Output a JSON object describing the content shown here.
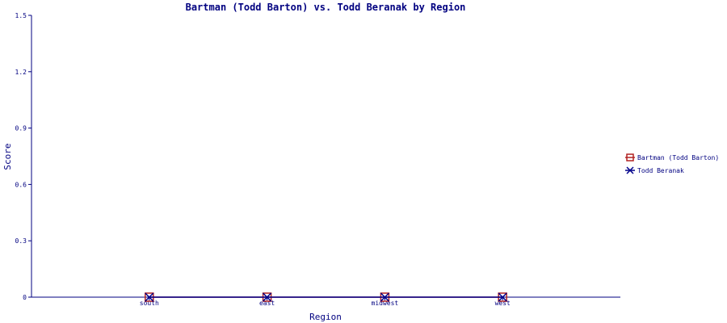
{
  "chart_data": {
    "type": "line",
    "title": "Bartman (Todd Barton) vs. Todd Beranak by Region",
    "xlabel": "Region",
    "ylabel": "Score",
    "categories": [
      "south",
      "east",
      "midwest",
      "west"
    ],
    "ylim": [
      0,
      1.5
    ],
    "yticks": [
      "0",
      "0.3",
      "0.6",
      "0.9",
      "1.2",
      "1.5"
    ],
    "grid": false,
    "legend_position": "right",
    "series": [
      {
        "name": "Bartman (Todd Barton)",
        "values": [
          0,
          0,
          0,
          0
        ],
        "color": "#b22222",
        "marker": "square"
      },
      {
        "name": "Todd Beranak",
        "values": [
          0,
          0,
          0,
          0
        ],
        "color": "#00008b",
        "marker": "x"
      }
    ],
    "text_color": "#000080",
    "axis_color": "#000080"
  }
}
